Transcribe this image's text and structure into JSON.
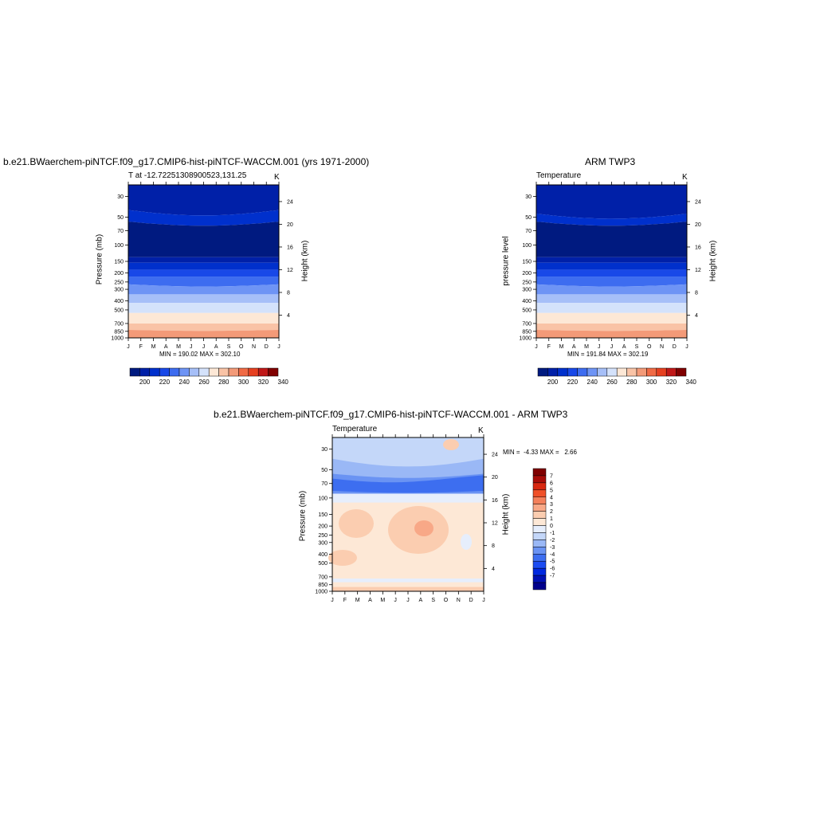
{
  "colors": {
    "temp_scale": [
      "#001a80",
      "#0020a8",
      "#0030cc",
      "#1848e8",
      "#3d6cf0",
      "#6e94f5",
      "#a6bff8",
      "#d4e2fb",
      "#fde8d6",
      "#f9c3a6",
      "#f39a78",
      "#f06a45",
      "#e64020",
      "#c01818",
      "#800000"
    ],
    "diff_scale": [
      "#00008c",
      "#0010b4",
      "#0028e0",
      "#1c4cf2",
      "#3d6ef0",
      "#6a93f3",
      "#9ab8f6",
      "#c4d7f9",
      "#e6eefc",
      "#fde8d6",
      "#fbcdb0",
      "#f8a887",
      "#f4805b",
      "#f05028",
      "#d82810",
      "#a80c08",
      "#800000"
    ]
  },
  "panels": {
    "left": {
      "title": "b.e21.BWaerchem-piNTCF.f09_g17.CMIP6-hist-piNTCF-WACCM.001 (yrs 1971-2000)",
      "subtitle": "T at -12.72251308900523,131.25",
      "units": "K",
      "ylabel": "Pressure (mb)",
      "ylabel_right": "Height (km)",
      "stats": "MIN = 190.02 MAX = 302.10"
    },
    "right": {
      "title": "ARM TWP3",
      "subtitle": "Temperature",
      "units": "K",
      "ylabel": "pressure level",
      "ylabel_right": "Height (km)",
      "stats": "MIN = 191.84 MAX = 302.19"
    },
    "diff": {
      "title": "b.e21.BWaerchem-piNTCF.f09_g17.CMIP6-hist-piNTCF-WACCM.001 - ARM TWP3",
      "subtitle": "Temperature",
      "units": "K",
      "ylabel": "Pressure (mb)",
      "ylabel_right": "Height (km)",
      "stats": "MIN =  -4.33 MAX =   2.66"
    }
  },
  "chart_data": [
    {
      "type": "heatmap",
      "title": "b.e21.BWaerchem-piNTCF.f09_g17.CMIP6-hist-piNTCF-WACCM.001 (yrs 1971-2000)",
      "subtitle": "T at -12.72251308900523,131.25",
      "x_ticks": [
        "J",
        "F",
        "M",
        "A",
        "M",
        "J",
        "J",
        "A",
        "S",
        "O",
        "N",
        "D",
        "J"
      ],
      "y_ticks_pressure": [
        30,
        50,
        70,
        100,
        150,
        200,
        250,
        300,
        400,
        500,
        700,
        850,
        1000
      ],
      "y_ticks_height_km": [
        24,
        20,
        16,
        12,
        8,
        4
      ],
      "colorbar_ticks": [
        200,
        220,
        240,
        260,
        280,
        300,
        320,
        340
      ],
      "min": 190.02,
      "max": 302.1,
      "units": "K"
    },
    {
      "type": "heatmap",
      "title": "ARM TWP3",
      "subtitle": "Temperature",
      "x_ticks": [
        "J",
        "F",
        "M",
        "A",
        "M",
        "J",
        "J",
        "A",
        "S",
        "O",
        "N",
        "D",
        "J"
      ],
      "y_ticks_pressure": [
        30,
        50,
        70,
        100,
        150,
        200,
        250,
        300,
        400,
        500,
        700,
        850,
        1000
      ],
      "y_ticks_height_km": [
        24,
        20,
        16,
        12,
        8,
        4
      ],
      "colorbar_ticks": [
        200,
        220,
        240,
        260,
        280,
        300,
        320,
        340
      ],
      "min": 191.84,
      "max": 302.19,
      "units": "K"
    },
    {
      "type": "heatmap",
      "title": "b.e21.BWaerchem-piNTCF.f09_g17.CMIP6-hist-piNTCF-WACCM.001 - ARM TWP3",
      "subtitle": "Temperature",
      "x_ticks": [
        "J",
        "F",
        "M",
        "A",
        "M",
        "J",
        "J",
        "A",
        "S",
        "O",
        "N",
        "D",
        "J"
      ],
      "y_ticks_pressure": [
        30,
        50,
        70,
        100,
        150,
        200,
        250,
        300,
        400,
        500,
        700,
        850,
        1000
      ],
      "y_ticks_height_km": [
        24,
        20,
        16,
        12,
        8,
        4
      ],
      "colorbar_ticks": [
        7,
        6,
        5,
        4,
        3,
        2,
        1,
        0,
        -1,
        -2,
        -3,
        -4,
        -5,
        -6,
        -7
      ],
      "min": -4.33,
      "max": 2.66,
      "units": "K"
    }
  ]
}
